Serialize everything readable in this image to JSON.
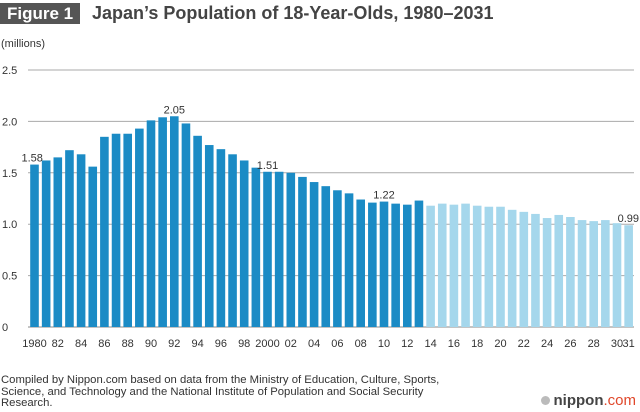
{
  "figure_label": "Figure 1",
  "source_note": "Compiled by Nippon.com based on data from the Ministry of Education, Culture, Sports, Science, and Technology and the National Institute of Population and Social Security Research.",
  "logo": {
    "name": "nippon",
    "suffix": ".com"
  },
  "chart_data": {
    "type": "bar",
    "title": "Japan’s Population of 18-Year-Olds, 1980–2031",
    "ylabel": "(millions)",
    "xlabel": "",
    "ylim": [
      0,
      2.5
    ],
    "y_ticks": [
      0,
      0.5,
      1.0,
      1.5,
      2.0,
      2.5
    ],
    "y_tick_labels": [
      "0",
      "0.5",
      "1.0",
      "1.5",
      "2.0",
      "2.5"
    ],
    "grid": true,
    "x": [
      1980,
      1981,
      1982,
      1983,
      1984,
      1985,
      1986,
      1987,
      1988,
      1989,
      1990,
      1991,
      1992,
      1993,
      1994,
      1995,
      1996,
      1997,
      1998,
      1999,
      2000,
      2001,
      2002,
      2003,
      2004,
      2005,
      2006,
      2007,
      2008,
      2009,
      2010,
      2011,
      2012,
      2013,
      2014,
      2015,
      2016,
      2017,
      2018,
      2019,
      2020,
      2021,
      2022,
      2023,
      2024,
      2025,
      2026,
      2027,
      2028,
      2029,
      2030,
      2031
    ],
    "values": [
      1.58,
      1.62,
      1.65,
      1.72,
      1.68,
      1.56,
      1.85,
      1.88,
      1.88,
      1.93,
      2.01,
      2.04,
      2.05,
      1.98,
      1.86,
      1.77,
      1.73,
      1.68,
      1.62,
      1.55,
      1.51,
      1.51,
      1.5,
      1.46,
      1.41,
      1.37,
      1.33,
      1.3,
      1.24,
      1.21,
      1.22,
      1.2,
      1.19,
      1.23,
      1.18,
      1.2,
      1.19,
      1.2,
      1.18,
      1.17,
      1.17,
      1.14,
      1.12,
      1.1,
      1.06,
      1.09,
      1.07,
      1.04,
      1.03,
      1.04,
      1.01,
      0.99
    ],
    "x_tick_labels": [
      {
        "year": 1980,
        "label": "1980"
      },
      {
        "year": 1982,
        "label": "82"
      },
      {
        "year": 1984,
        "label": "84"
      },
      {
        "year": 1986,
        "label": "86"
      },
      {
        "year": 1988,
        "label": "88"
      },
      {
        "year": 1990,
        "label": "90"
      },
      {
        "year": 1992,
        "label": "92"
      },
      {
        "year": 1994,
        "label": "94"
      },
      {
        "year": 1996,
        "label": "96"
      },
      {
        "year": 1998,
        "label": "98"
      },
      {
        "year": 2000,
        "label": "2000"
      },
      {
        "year": 2002,
        "label": "02"
      },
      {
        "year": 2004,
        "label": "04"
      },
      {
        "year": 2006,
        "label": "06"
      },
      {
        "year": 2008,
        "label": "08"
      },
      {
        "year": 2010,
        "label": "10"
      },
      {
        "year": 2012,
        "label": "12"
      },
      {
        "year": 2014,
        "label": "14"
      },
      {
        "year": 2016,
        "label": "16"
      },
      {
        "year": 2018,
        "label": "18"
      },
      {
        "year": 2020,
        "label": "20"
      },
      {
        "year": 2022,
        "label": "22"
      },
      {
        "year": 2024,
        "label": "24"
      },
      {
        "year": 2026,
        "label": "26"
      },
      {
        "year": 2028,
        "label": "28"
      },
      {
        "year": 2030,
        "label": "30"
      },
      {
        "year": 2031,
        "label": "31"
      }
    ],
    "data_labels": [
      {
        "year": 1980,
        "label": "1.58"
      },
      {
        "year": 1992,
        "label": "2.05"
      },
      {
        "year": 2000,
        "label": "1.51"
      },
      {
        "year": 2010,
        "label": "1.22"
      },
      {
        "year": 2031,
        "label": "0.99"
      }
    ],
    "projection_start_year": 2014,
    "colors": {
      "actual": "#1b8bc5",
      "projection": "#a5d7ec",
      "grid": "#aaaaaa"
    }
  }
}
